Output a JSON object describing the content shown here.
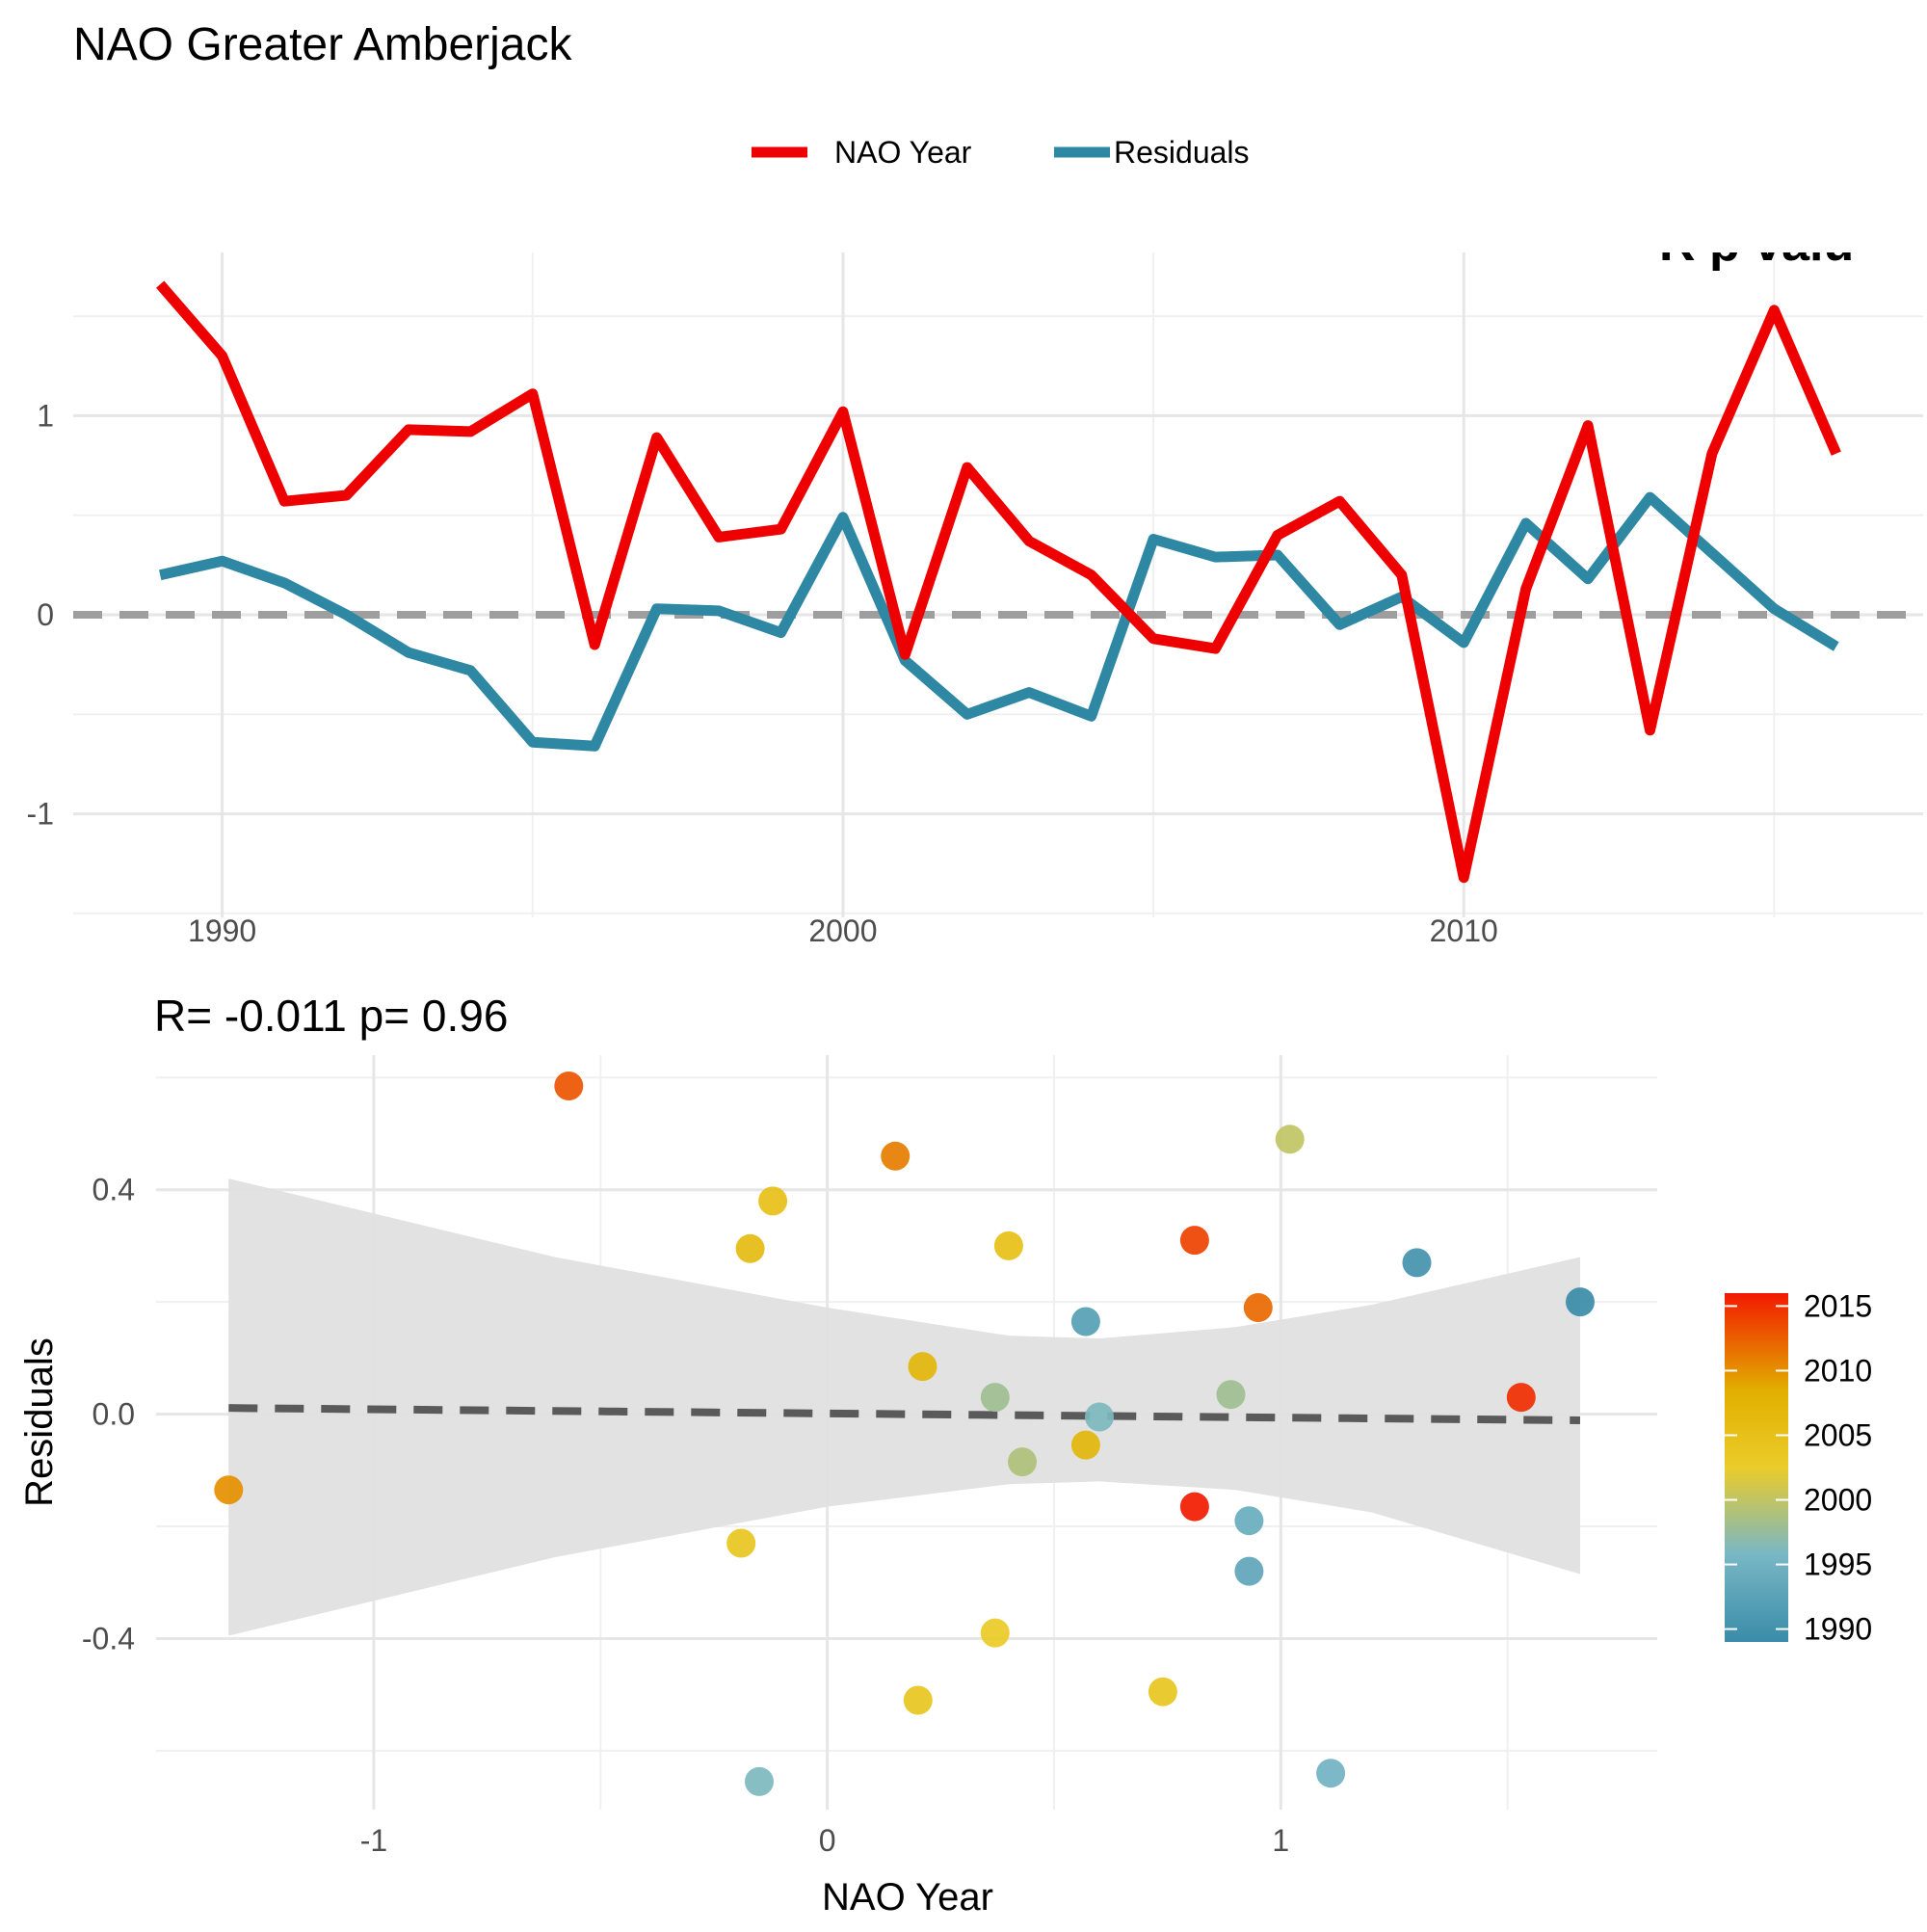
{
  "title": "NAO  Greater Amberjack",
  "colors": {
    "nao_line": "#ee0000",
    "residual_line": "#2e88a3",
    "zero_line": "#9e9e9e",
    "fit_line": "#5a5a5a",
    "ribbon": "#e0e0e0",
    "gradient_stops": [
      "#3a8ca8",
      "#78b7c5",
      "#ebcc2a",
      "#e1af00",
      "#f21a00"
    ]
  },
  "chart_data": [
    {
      "type": "line",
      "title": "",
      "xlabel": "",
      "ylabel": "",
      "cut_off_annotation": "R p valu",
      "x_ticks": [
        "1990",
        "2000",
        "2010"
      ],
      "y_ticks": [
        "-1",
        "0",
        "1"
      ],
      "xlim": [
        1987.6,
        2017.4
      ],
      "ylim": [
        -1.52,
        1.82
      ],
      "grid": true,
      "legend_position": "top",
      "x": [
        1989,
        1990,
        1991,
        1992,
        1993,
        1994,
        1995,
        1996,
        1997,
        1998,
        1999,
        2000,
        2001,
        2002,
        2003,
        2004,
        2005,
        2006,
        2007,
        2008,
        2009,
        2010,
        2011,
        2012,
        2013,
        2014,
        2015,
        2016
      ],
      "series": [
        {
          "name": "NAO Year",
          "values": [
            1.66,
            1.3,
            0.57,
            0.6,
            0.93,
            0.92,
            1.11,
            -0.15,
            0.89,
            0.39,
            0.43,
            1.02,
            -0.2,
            0.74,
            0.37,
            0.2,
            -0.12,
            -0.17,
            0.4,
            0.57,
            0.2,
            -1.32,
            0.13,
            0.95,
            -0.58,
            0.81,
            1.53,
            0.81
          ]
        },
        {
          "name": "Residuals",
          "values": [
            0.2,
            0.27,
            0.16,
            0.0,
            -0.19,
            -0.28,
            -0.64,
            -0.66,
            0.03,
            0.02,
            -0.09,
            0.49,
            -0.23,
            -0.5,
            -0.39,
            -0.51,
            0.38,
            0.29,
            0.3,
            -0.05,
            0.09,
            -0.14,
            0.46,
            0.18,
            0.59,
            0.31,
            0.03,
            -0.16
          ]
        }
      ],
      "reference_line": 0
    },
    {
      "type": "scatter",
      "title": "R= -0.011  p= 0.96",
      "xlabel": "NAO Year",
      "ylabel": "Residuals",
      "x_ticks": [
        "-1",
        "0",
        "1"
      ],
      "y_ticks": [
        "-0.4",
        "0.0",
        "0.4"
      ],
      "xlim": [
        -1.48,
        1.83
      ],
      "ylim": [
        -0.705,
        0.64
      ],
      "grid": true,
      "legend_title": "",
      "legend_ticks": [
        "2015",
        "2010",
        "2005",
        "2000",
        "1995",
        "1990"
      ],
      "legend_position": "right",
      "color_range": [
        1989,
        2016
      ],
      "fit": {
        "x": [
          -1.32,
          1.66
        ],
        "y": [
          0.011,
          -0.011
        ]
      },
      "ci_band": {
        "x": [
          -1.32,
          -0.6,
          0.0,
          0.4,
          0.6,
          0.9,
          1.2,
          1.66
        ],
        "upper": [
          0.42,
          0.28,
          0.19,
          0.14,
          0.135,
          0.155,
          0.195,
          0.28
        ],
        "lower": [
          -0.395,
          -0.255,
          -0.165,
          -0.125,
          -0.12,
          -0.135,
          -0.175,
          -0.285
        ]
      },
      "points": [
        {
          "x": -1.32,
          "y": -0.135,
          "year": 2010
        },
        {
          "x": -0.57,
          "y": 0.585,
          "year": 2013
        },
        {
          "x": -0.19,
          "y": -0.23,
          "year": 2004
        },
        {
          "x": -0.17,
          "y": 0.295,
          "year": 2006
        },
        {
          "x": -0.15,
          "y": -0.655,
          "year": 1996
        },
        {
          "x": -0.12,
          "y": 0.38,
          "year": 2005
        },
        {
          "x": 0.15,
          "y": 0.46,
          "year": 2011
        },
        {
          "x": 0.2,
          "y": -0.51,
          "year": 2004
        },
        {
          "x": 0.21,
          "y": 0.085,
          "year": 2007
        },
        {
          "x": 0.37,
          "y": 0.03,
          "year": 1998
        },
        {
          "x": 0.37,
          "y": -0.39,
          "year": 2003
        },
        {
          "x": 0.4,
          "y": 0.3,
          "year": 2005
        },
        {
          "x": 0.43,
          "y": -0.085,
          "year": 1999
        },
        {
          "x": 0.57,
          "y": 0.165,
          "year": 1992
        },
        {
          "x": 0.57,
          "y": -0.055,
          "year": 2007
        },
        {
          "x": 0.6,
          "y": -0.005,
          "year": 1996
        },
        {
          "x": 0.74,
          "y": -0.495,
          "year": 2004
        },
        {
          "x": 0.81,
          "y": 0.31,
          "year": 2014
        },
        {
          "x": 0.81,
          "y": -0.165,
          "year": 2016
        },
        {
          "x": 0.89,
          "y": 0.035,
          "year": 1998
        },
        {
          "x": 0.93,
          "y": -0.19,
          "year": 1994
        },
        {
          "x": 0.93,
          "y": -0.28,
          "year": 1993
        },
        {
          "x": 0.95,
          "y": 0.19,
          "year": 2012
        },
        {
          "x": 1.02,
          "y": 0.49,
          "year": 2000
        },
        {
          "x": 1.11,
          "y": -0.64,
          "year": 1995
        },
        {
          "x": 1.3,
          "y": 0.27,
          "year": 1990
        },
        {
          "x": 1.53,
          "y": 0.03,
          "year": 2015
        },
        {
          "x": 1.66,
          "y": 0.2,
          "year": 1989
        }
      ]
    }
  ]
}
